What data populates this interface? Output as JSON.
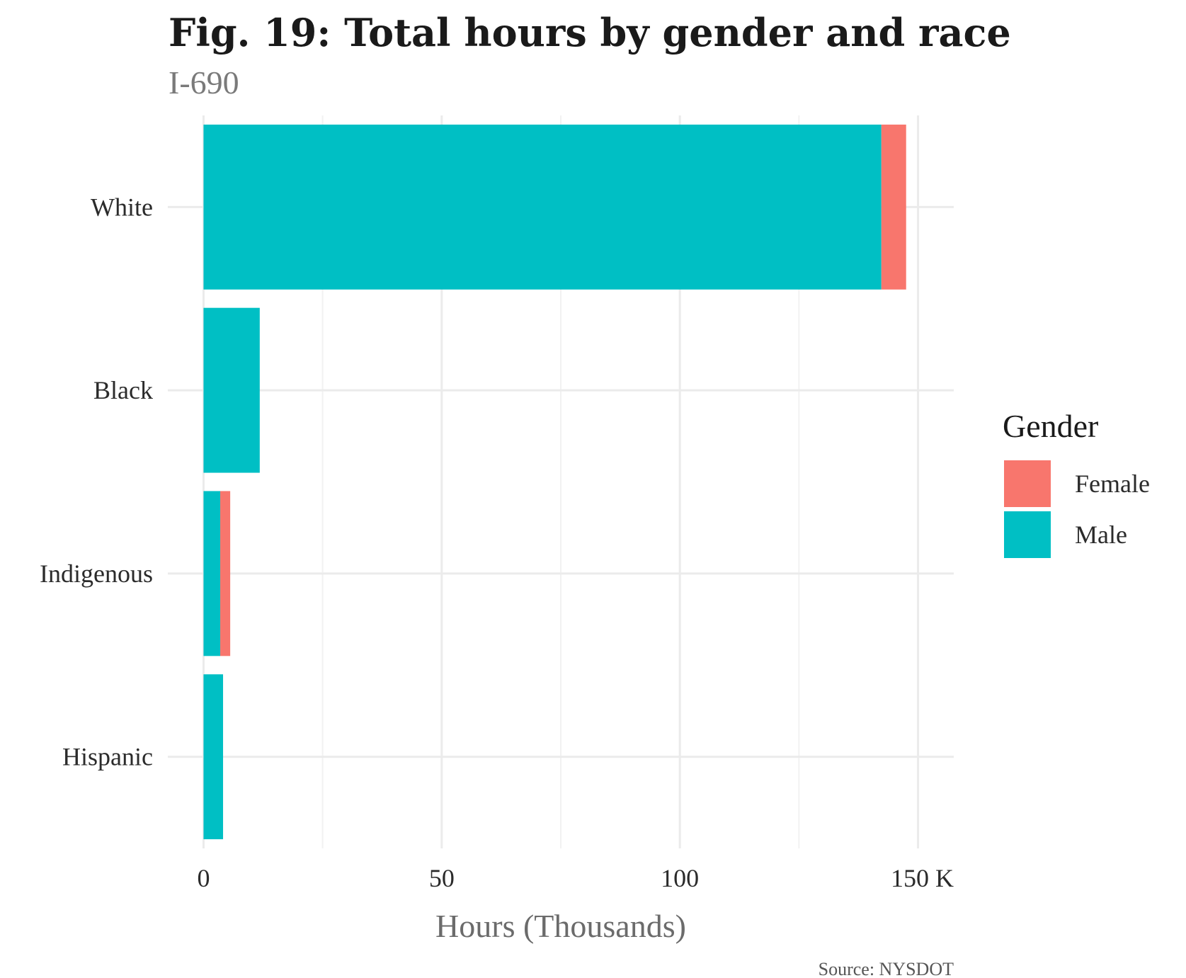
{
  "chart_data": {
    "type": "bar",
    "orientation": "horizontal",
    "stacked": true,
    "title": "Fig. 19: Total hours by gender and race",
    "subtitle": "I-690",
    "xlabel": "Hours (Thousands)",
    "ylabel": "",
    "caption": "Source: NYSDOT",
    "categories": [
      "White",
      "Black",
      "Indigenous",
      "Hispanic"
    ],
    "series": [
      {
        "name": "Male",
        "color": "#00BFC4",
        "values": [
          142.3,
          11.8,
          3.5,
          4.1
        ]
      },
      {
        "name": "Female",
        "color": "#F8766D",
        "values": [
          5.2,
          0,
          2.1,
          0
        ]
      }
    ],
    "xlim": [
      -7.5,
      157.5
    ],
    "xticks": [
      0,
      50,
      100,
      150
    ],
    "xtick_labels": [
      "0",
      "50",
      "100",
      "150 K"
    ],
    "grid": true,
    "legend": {
      "title": "Gender",
      "position": "right",
      "items": [
        {
          "label": "Female",
          "color": "#F8766D"
        },
        {
          "label": "Male",
          "color": "#00BFC4"
        }
      ]
    }
  }
}
